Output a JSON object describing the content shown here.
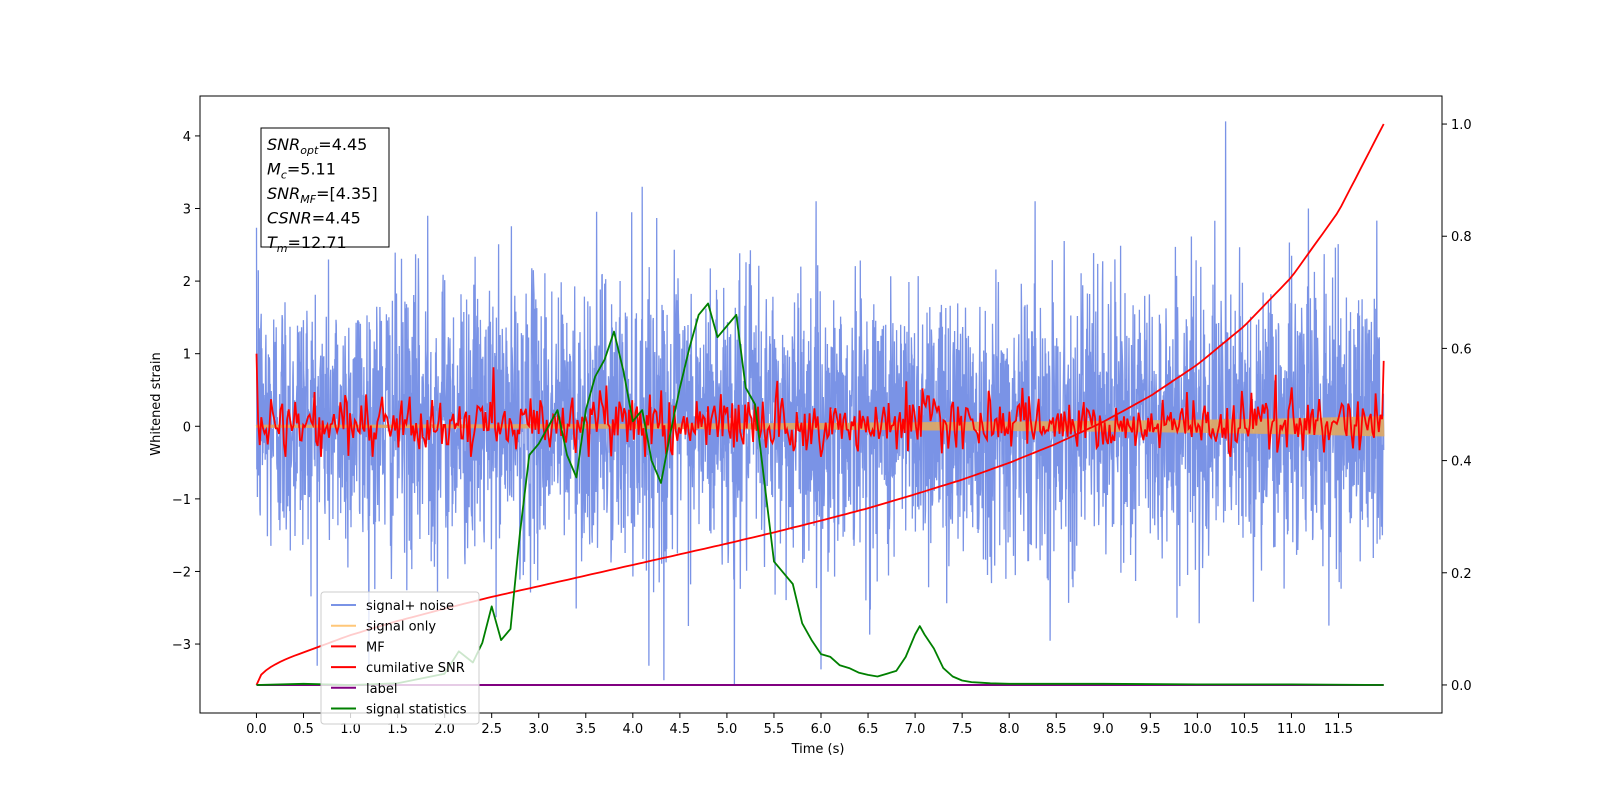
{
  "chart_data": {
    "type": "line",
    "xlabel": "Time (s)",
    "ylabel": "Whitened strain",
    "xlim": [
      -0.6,
      12.6
    ],
    "ylim_left": [
      -3.95,
      4.55
    ],
    "ylim_right": [
      -0.05,
      1.05
    ],
    "x_ticks": [
      "0.0",
      "0.5",
      "1.0",
      "1.5",
      "2.0",
      "2.5",
      "3.0",
      "3.5",
      "4.0",
      "4.5",
      "5.0",
      "5.5",
      "6.0",
      "6.5",
      "7.0",
      "7.5",
      "8.0",
      "8.5",
      "9.0",
      "9.5",
      "10.0",
      "10.5",
      "11.0",
      "11.5"
    ],
    "y_ticks_left": [
      "4",
      "3",
      "2",
      "1",
      "0",
      "−1",
      "−2",
      "−3"
    ],
    "y_ticks_right": [
      "1.0",
      "0.8",
      "0.6",
      "0.4",
      "0.2",
      "0.0"
    ],
    "annotation": [
      {
        "base": "SNR",
        "sub": "opt",
        "value": "=4.45"
      },
      {
        "base": "M",
        "sub": "c",
        "value": "=5.11"
      },
      {
        "base": "SNR",
        "sub": "MF",
        "value": "=[4.35]"
      },
      {
        "base": "CSNR",
        "sub": "",
        "value": "=4.45"
      },
      {
        "base": "T",
        "sub": "m",
        "value": "=12.71"
      }
    ],
    "legend_position": "lower left",
    "legend": [
      {
        "label": "signal+ noise",
        "color": "#7a93e6"
      },
      {
        "label": "signal only",
        "color": "#ffc779"
      },
      {
        "label": "MF",
        "color": "#ff0000"
      },
      {
        "label": "cumilative SNR",
        "color": "#ff0000"
      },
      {
        "label": "label",
        "color": "#800080"
      },
      {
        "label": "signal statistics",
        "color": "#008000"
      }
    ],
    "series": [
      {
        "name": "signal+ noise",
        "axis": "left",
        "style": "dense noise, approx. std 0.95, range -3.5 to 4.2",
        "x_range": [
          0,
          11.98
        ],
        "peaks": [
          [
            0.02,
            2.15
          ],
          [
            1.82,
            2.9
          ],
          [
            4.1,
            3.3
          ],
          [
            4.33,
            -3.5
          ],
          [
            5.08,
            -3.55
          ],
          [
            6.0,
            -3.35
          ],
          [
            10.3,
            4.2
          ],
          [
            11.18,
            3.0
          ]
        ]
      },
      {
        "name": "signal only",
        "axis": "left",
        "x": [
          0,
          1,
          2,
          3,
          4,
          5,
          6,
          7,
          8,
          9,
          10,
          11,
          11.98
        ],
        "amplitude": [
          0.02,
          0.02,
          0.025,
          0.03,
          0.035,
          0.04,
          0.045,
          0.055,
          0.065,
          0.075,
          0.09,
          0.11,
          0.14
        ]
      },
      {
        "name": "MF",
        "axis": "left",
        "style": "noisy trace, approx. std 0.22",
        "x_range": [
          0,
          11.98
        ],
        "endpoints": [
          [
            0.0,
            1.0
          ],
          [
            11.98,
            0.9
          ]
        ]
      },
      {
        "name": "cumilative SNR",
        "axis": "right",
        "x": [
          0,
          0.5,
          1,
          1.5,
          2,
          2.5,
          3,
          3.5,
          4,
          4.5,
          5,
          5.5,
          6,
          6.5,
          7,
          7.5,
          8,
          8.5,
          9,
          9.5,
          10,
          10.5,
          11,
          11.5,
          11.98
        ],
        "y": [
          0.0,
          0.058,
          0.089,
          0.114,
          0.136,
          0.157,
          0.176,
          0.195,
          0.214,
          0.233,
          0.252,
          0.272,
          0.293,
          0.315,
          0.34,
          0.366,
          0.396,
          0.43,
          0.469,
          0.515,
          0.571,
          0.64,
          0.727,
          0.844,
          1.0
        ]
      },
      {
        "name": "label",
        "axis": "right",
        "x": [
          0,
          11.98
        ],
        "y": [
          0.0,
          0.0
        ]
      },
      {
        "name": "signal statistics",
        "axis": "right",
        "x": [
          0,
          0.5,
          1,
          1.5,
          2,
          2.15,
          2.3,
          2.4,
          2.5,
          2.6,
          2.7,
          2.8,
          2.9,
          3.0,
          3.1,
          3.2,
          3.3,
          3.4,
          3.5,
          3.6,
          3.7,
          3.8,
          3.9,
          4.0,
          4.1,
          4.2,
          4.3,
          4.4,
          4.5,
          4.6,
          4.7,
          4.8,
          4.9,
          5.0,
          5.1,
          5.2,
          5.3,
          5.4,
          5.5,
          5.6,
          5.7,
          5.8,
          5.9,
          6.0,
          6.1,
          6.2,
          6.3,
          6.4,
          6.5,
          6.6,
          6.7,
          6.8,
          6.9,
          7.0,
          7.05,
          7.1,
          7.2,
          7.3,
          7.4,
          7.5,
          7.6,
          7.7,
          7.8,
          8.0,
          9.0,
          10.0,
          11.0,
          11.98
        ],
        "y": [
          0.0,
          0.002,
          0.0,
          0.003,
          0.02,
          0.06,
          0.04,
          0.075,
          0.14,
          0.08,
          0.1,
          0.27,
          0.41,
          0.43,
          0.46,
          0.49,
          0.41,
          0.37,
          0.49,
          0.55,
          0.58,
          0.63,
          0.56,
          0.47,
          0.49,
          0.4,
          0.36,
          0.45,
          0.53,
          0.6,
          0.66,
          0.68,
          0.62,
          0.64,
          0.66,
          0.53,
          0.5,
          0.36,
          0.22,
          0.2,
          0.18,
          0.11,
          0.08,
          0.055,
          0.05,
          0.035,
          0.03,
          0.022,
          0.018,
          0.015,
          0.02,
          0.025,
          0.05,
          0.09,
          0.105,
          0.09,
          0.065,
          0.03,
          0.015,
          0.008,
          0.005,
          0.004,
          0.003,
          0.002,
          0.002,
          0.001,
          0.001,
          0.0
        ]
      }
    ]
  }
}
